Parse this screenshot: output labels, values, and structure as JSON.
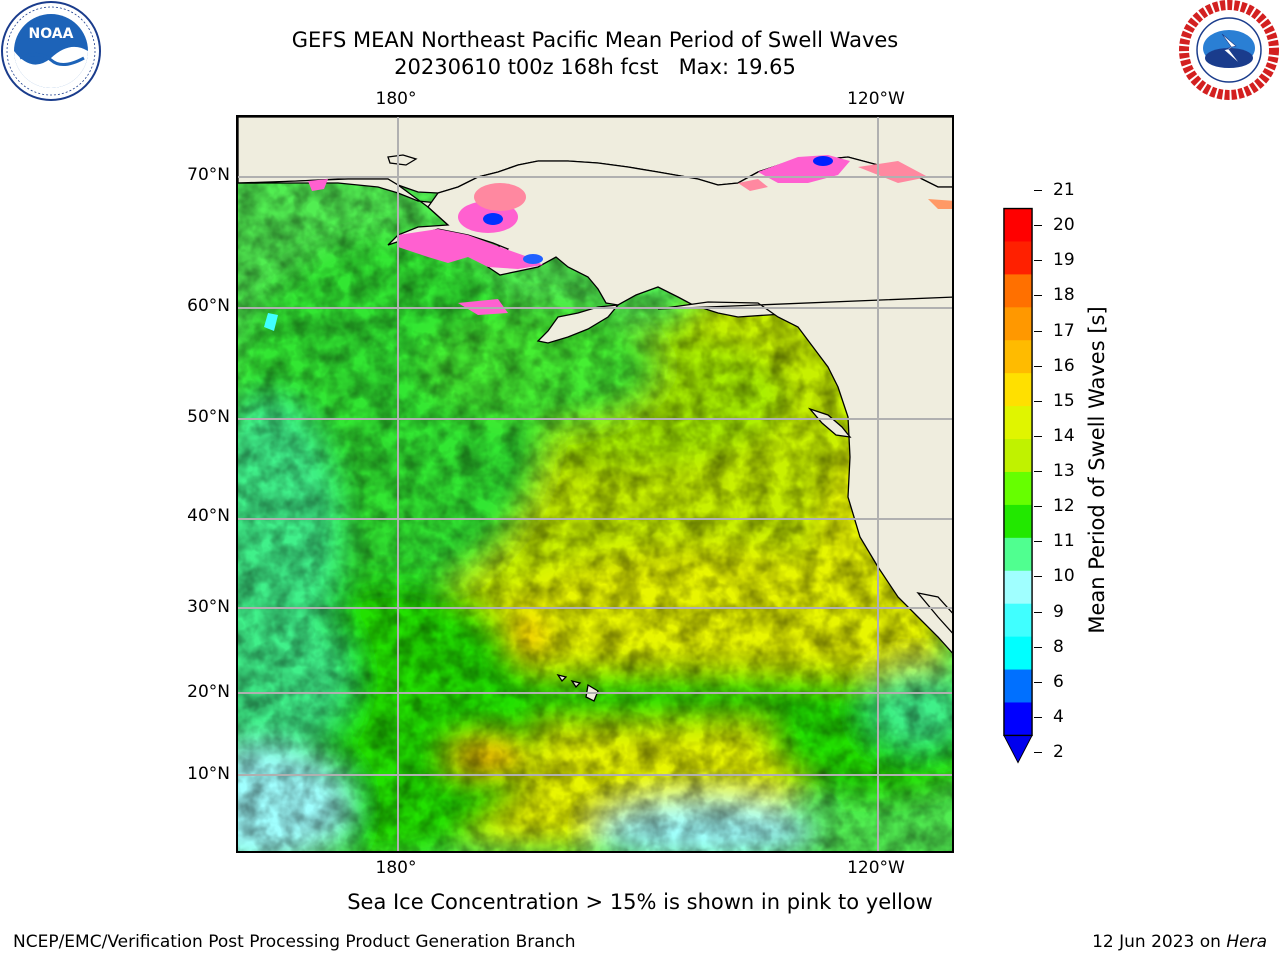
{
  "header": {
    "title": "GEFS MEAN Northeast Pacific Mean Period of Swell Waves",
    "subtitle": "20230610 t00z 168h fcst   Max: 19.65"
  },
  "logos": {
    "left": "noaa-logo",
    "left_text": "NOAA",
    "right": "nws-logo",
    "right_text": "NATIONAL WEATHER SERVICE"
  },
  "map": {
    "lat_labels": [
      "70°N",
      "60°N",
      "50°N",
      "40°N",
      "30°N",
      "20°N",
      "10°N"
    ],
    "lon_labels_top": [
      "180°",
      "120°W"
    ],
    "lon_labels_bottom": [
      "180°",
      "120°W"
    ],
    "land_color": "#efedde",
    "gridline_color": "#b0b0b0"
  },
  "colorbar": {
    "label": "Mean Period of Swell Waves [s]",
    "ticks": [
      "21",
      "20",
      "19",
      "18",
      "17",
      "16",
      "15",
      "14",
      "13",
      "12",
      "11",
      "10",
      "9",
      "8",
      "6",
      "4",
      "2"
    ],
    "colors": [
      "#ff0000",
      "#ff2000",
      "#ff4800",
      "#ff7000",
      "#ff9800",
      "#ffbb00",
      "#ffe000",
      "#f5f500",
      "#e0f500",
      "#c0f200",
      "#66ff00",
      "#22e800",
      "#30ee70",
      "#50ff90",
      "#a0ffff",
      "#40ffff",
      "#00ffff",
      "#00e0ff",
      "#0070ff",
      "#0000ff"
    ],
    "under_color": "#0000ee"
  },
  "footer": {
    "note": "Sea Ice Concentration > 15% is shown in pink to yellow",
    "credit_left": "NCEP/EMC/Verification Post Processing Product Generation Branch",
    "credit_right_date": "12 Jun 2023 on",
    "credit_right_host": "Hera"
  }
}
